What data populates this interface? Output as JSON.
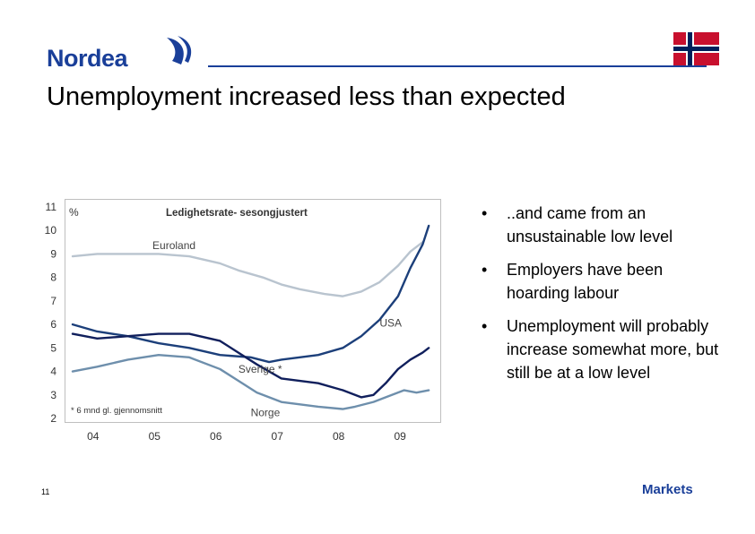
{
  "header": {
    "logo_text": "Nordea",
    "title": "Unemployment increased less than expected"
  },
  "colors": {
    "brand": "#1a3f99",
    "flag_red": "#c8102e",
    "flag_blue": "#00205b",
    "euroland": "#b9c4cf",
    "usa": "#1c3f7a",
    "sverige": "#101f5c",
    "norge": "#6e8fac"
  },
  "bullets": [
    "..and came from an unsustainable low level",
    "Employers have been hoarding labour",
    "Unemployment will probably increase somewhat more, but still be at a low level"
  ],
  "bullet_symbol": "•",
  "footer": {
    "page_number": "11",
    "markets_label": "Markets"
  },
  "chart_data": {
    "type": "line",
    "title": "Ledighetsrate- sesongjustert",
    "ylabel": "%",
    "ylim": [
      2,
      11
    ],
    "xlim": [
      2003.6,
      2009.5
    ],
    "yticks": [
      2,
      3,
      4,
      5,
      6,
      7,
      8,
      9,
      10,
      11
    ],
    "xticks": [
      {
        "label": "04",
        "value": 2004.4
      },
      {
        "label": "05",
        "value": 2005.4
      },
      {
        "label": "06",
        "value": 2006.4
      },
      {
        "label": "07",
        "value": 2007.4
      },
      {
        "label": "08",
        "value": 2008.4
      },
      {
        "label": "09",
        "value": 2009.4
      }
    ],
    "annotation": "* 6 mnd gl. gjennomsnitt",
    "grid": false,
    "series": [
      {
        "name": "Euroland",
        "color_key": "euroland",
        "label_x": 2004.9,
        "label_y": 9.2,
        "x": [
          2003.6,
          2004.0,
          2004.5,
          2005.0,
          2005.5,
          2006.0,
          2006.3,
          2006.7,
          2007.0,
          2007.3,
          2007.7,
          2008.0,
          2008.3,
          2008.6,
          2008.9,
          2009.1,
          2009.3
        ],
        "y": [
          8.9,
          9.0,
          9.0,
          9.0,
          8.9,
          8.6,
          8.3,
          8.0,
          7.7,
          7.5,
          7.3,
          7.2,
          7.4,
          7.8,
          8.5,
          9.1,
          9.5
        ]
      },
      {
        "name": "USA",
        "color_key": "usa",
        "label_x": 2008.6,
        "label_y": 5.9,
        "x": [
          2003.6,
          2004.0,
          2004.5,
          2005.0,
          2005.5,
          2006.0,
          2006.5,
          2006.8,
          2007.0,
          2007.3,
          2007.6,
          2008.0,
          2008.3,
          2008.6,
          2008.9,
          2009.1,
          2009.3,
          2009.4
        ],
        "y": [
          6.0,
          5.7,
          5.5,
          5.2,
          5.0,
          4.7,
          4.6,
          4.4,
          4.5,
          4.6,
          4.7,
          5.0,
          5.5,
          6.2,
          7.2,
          8.4,
          9.4,
          10.2
        ]
      },
      {
        "name": "Sverige *",
        "color_key": "sverige",
        "label_x": 2006.3,
        "label_y": 3.95,
        "x": [
          2003.6,
          2004.0,
          2004.5,
          2005.0,
          2005.5,
          2006.0,
          2006.3,
          2006.6,
          2007.0,
          2007.3,
          2007.6,
          2008.0,
          2008.3,
          2008.5,
          2008.7,
          2008.9,
          2009.1,
          2009.3,
          2009.4
        ],
        "y": [
          5.6,
          5.4,
          5.5,
          5.6,
          5.6,
          5.3,
          4.8,
          4.3,
          3.7,
          3.6,
          3.5,
          3.2,
          2.9,
          3.0,
          3.5,
          4.1,
          4.5,
          4.8,
          5.0
        ]
      },
      {
        "name": "Norge",
        "color_key": "norge",
        "label_x": 2006.5,
        "label_y": 2.1,
        "x": [
          2003.6,
          2004.0,
          2004.5,
          2005.0,
          2005.5,
          2006.0,
          2006.3,
          2006.6,
          2007.0,
          2007.3,
          2007.6,
          2008.0,
          2008.2,
          2008.5,
          2008.8,
          2009.0,
          2009.2,
          2009.4
        ],
        "y": [
          4.0,
          4.2,
          4.5,
          4.7,
          4.6,
          4.1,
          3.6,
          3.1,
          2.7,
          2.6,
          2.5,
          2.4,
          2.5,
          2.7,
          3.0,
          3.2,
          3.1,
          3.2
        ]
      }
    ]
  }
}
